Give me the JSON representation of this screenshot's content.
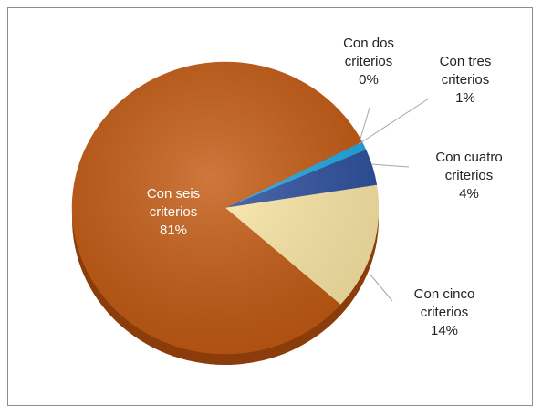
{
  "chart_data": {
    "type": "pie",
    "categories": [
      "Con dos criterios",
      "Con tres criterios",
      "Con cuatro criterios",
      "Con cinco criterios",
      "Con seis criterios"
    ],
    "values": [
      0,
      1,
      4,
      14,
      81
    ],
    "value_labels": [
      "0%",
      "1%",
      "4%",
      "14%",
      "81%"
    ],
    "colors": [
      "#9aa8b8",
      "#1ea7e4",
      "#2c4f9e",
      "#fde9a7",
      "#c45a12"
    ]
  }
}
